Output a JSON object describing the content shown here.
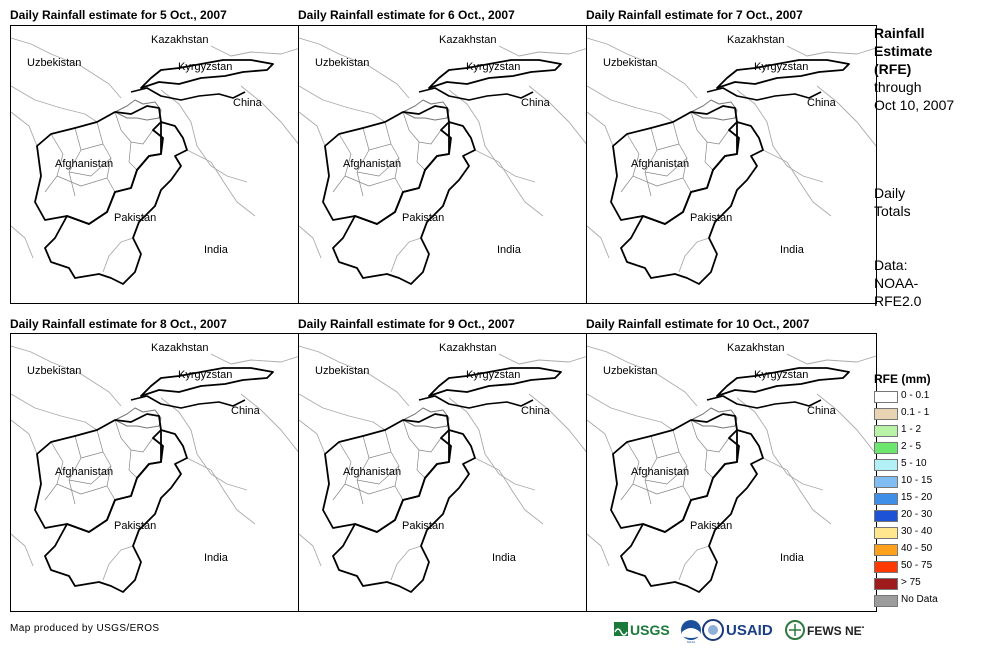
{
  "panels": [
    {
      "title": "Daily Rainfall estimate for 5 Oct., 2007"
    },
    {
      "title": "Daily Rainfall estimate for 6 Oct., 2007"
    },
    {
      "title": "Daily Rainfall estimate for 7 Oct., 2007"
    },
    {
      "title": "Daily Rainfall estimate for 8 Oct., 2007"
    },
    {
      "title": "Daily Rainfall estimate for 9 Oct., 2007"
    },
    {
      "title": "Daily Rainfall estimate for 10 Oct., 2007"
    }
  ],
  "map_labels": {
    "kazakhstan": "Kazakhstan",
    "uzbekistan": "Uzbekistan",
    "kyrgyzstan": "Kyrgyzstan",
    "china": "China",
    "afghanistan": "Afghanistan",
    "pakistan": "Pakistan",
    "india": "India"
  },
  "sidebar": {
    "title_bold": [
      "Rainfall",
      "Estimate",
      "(RFE)"
    ],
    "title_rest": [
      "through",
      "Oct 10, 2007"
    ],
    "totals": [
      "Daily",
      "Totals"
    ],
    "data_source": [
      "Data:",
      "NOAA-",
      "RFE2.0"
    ]
  },
  "legend": {
    "title": "RFE (mm)",
    "items": [
      {
        "label": "0 - 0.1",
        "color": "#ffffff"
      },
      {
        "label": "0.1 - 1",
        "color": "#e8d3b3"
      },
      {
        "label": "1 - 2",
        "color": "#b7f2a6"
      },
      {
        "label": "2 - 5",
        "color": "#6ce66c"
      },
      {
        "label": "5 - 10",
        "color": "#b3f0f5"
      },
      {
        "label": "10 - 15",
        "color": "#7fbdf2"
      },
      {
        "label": "15 - 20",
        "color": "#3f8ee8"
      },
      {
        "label": "20 - 30",
        "color": "#1d52d6"
      },
      {
        "label": "30 - 40",
        "color": "#ffe68f"
      },
      {
        "label": "40 - 50",
        "color": "#ffa11a"
      },
      {
        "label": "50 - 75",
        "color": "#ff3a00"
      },
      {
        "label": "> 75",
        "color": "#a01c1c"
      },
      {
        "label": "No Data",
        "color": "#9c9c9c"
      }
    ]
  },
  "footer": {
    "credit": "Map produced by USGS/EROS",
    "logos": [
      "USGS",
      "NOAA",
      "USAID",
      "FEWS NET"
    ]
  }
}
